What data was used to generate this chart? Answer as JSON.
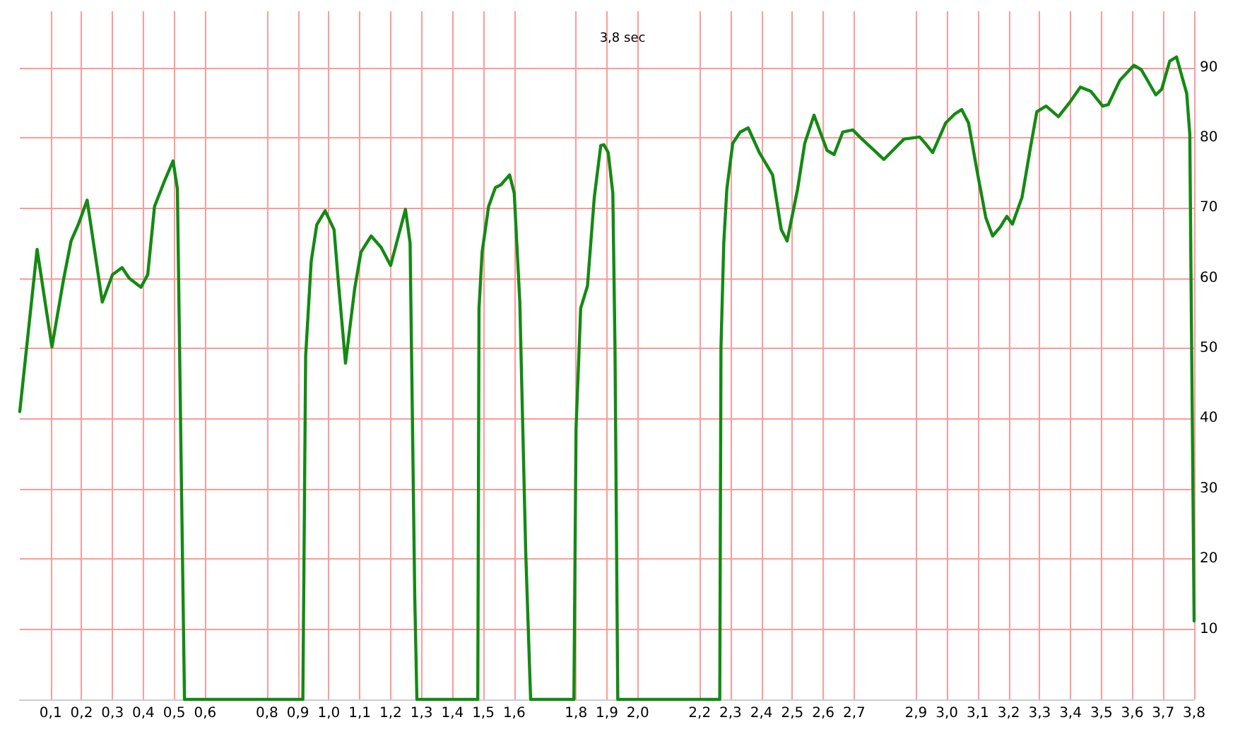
{
  "chart_data": {
    "type": "line",
    "title": "3,8 sec",
    "x": [
      0,
      0.056,
      0.104,
      0.142,
      0.166,
      0.189,
      0.218,
      0.267,
      0.3,
      0.331,
      0.354,
      0.392,
      0.414,
      0.436,
      0.467,
      0.496,
      0.51,
      0.522,
      0.533,
      0.916,
      0.925,
      0.943,
      0.961,
      0.988,
      1.017,
      1.03,
      1.054,
      1.084,
      1.104,
      1.137,
      1.169,
      1.2,
      1.248,
      1.263,
      1.278,
      1.285,
      1.482,
      1.486,
      1.496,
      1.517,
      1.539,
      1.557,
      1.585,
      1.6,
      1.618,
      1.637,
      1.653,
      1.793,
      1.8,
      1.815,
      1.837,
      1.859,
      1.88,
      1.89,
      1.904,
      1.919,
      1.926,
      1.935,
      2.265,
      2.269,
      2.278,
      2.288,
      2.307,
      2.331,
      2.357,
      2.393,
      2.436,
      2.464,
      2.483,
      2.517,
      2.54,
      2.57,
      2.612,
      2.635,
      2.663,
      2.696,
      2.718,
      2.796,
      2.861,
      2.912,
      2.93,
      2.954,
      2.996,
      3.026,
      3.048,
      3.07,
      3.1,
      3.126,
      3.148,
      3.173,
      3.194,
      3.212,
      3.243,
      3.27,
      3.291,
      3.321,
      3.361,
      3.397,
      3.432,
      3.466,
      3.504,
      3.522,
      3.56,
      3.605,
      3.629,
      3.676,
      3.695,
      3.721,
      3.743,
      3.776,
      3.786,
      3.79,
      3.8
    ],
    "series": [
      {
        "color": "#138a13",
        "values": [
          41,
          64.1,
          50.2,
          59.9,
          65.3,
          67.6,
          71.1,
          56.6,
          60.5,
          61.5,
          60,
          58.7,
          60.5,
          70.2,
          73.7,
          76.7,
          72.7,
          34.2,
          0,
          0,
          48.9,
          62.4,
          67.6,
          69.6,
          66.9,
          59.9,
          47.9,
          58.6,
          63.7,
          66,
          64.4,
          61.8,
          69.8,
          65,
          14.8,
          0,
          0,
          55.7,
          63.7,
          70.2,
          72.9,
          73.3,
          74.7,
          72.1,
          56.6,
          21.2,
          0,
          0,
          38.6,
          55.7,
          58.9,
          71.5,
          78.9,
          79,
          77.9,
          72.1,
          50.2,
          0,
          0,
          50.2,
          65,
          72.7,
          79.2,
          80.8,
          81.4,
          77.9,
          74.7,
          66.9,
          65.3,
          72.7,
          79.2,
          83.2,
          78.2,
          77.6,
          80.8,
          81.1,
          80.1,
          76.9,
          79.8,
          80.1,
          79.2,
          77.9,
          82.1,
          83.4,
          84,
          82.1,
          74.7,
          68.6,
          66,
          67.3,
          68.8,
          67.7,
          71.5,
          78.5,
          83.7,
          84.5,
          83,
          85,
          87.2,
          86.6,
          84.5,
          84.7,
          88.2,
          90.3,
          89.7,
          86.1,
          86.9,
          90.9,
          91.5,
          86.3,
          80.5,
          59.9,
          11.2
        ]
      }
    ],
    "xlim": [
      0,
      3.8
    ],
    "xticks": [
      {
        "value": 0.1,
        "label": "0,1"
      },
      {
        "value": 0.2,
        "label": "0,2"
      },
      {
        "value": 0.3,
        "label": "0,3"
      },
      {
        "value": 0.4,
        "label": "0,4"
      },
      {
        "value": 0.5,
        "label": "0,5"
      },
      {
        "value": 0.6,
        "label": "0,6"
      },
      {
        "value": 0.8,
        "label": "0,8"
      },
      {
        "value": 0.9,
        "label": "0,9"
      },
      {
        "value": 1.0,
        "label": "1,0"
      },
      {
        "value": 1.1,
        "label": "1,1"
      },
      {
        "value": 1.2,
        "label": "1,2"
      },
      {
        "value": 1.3,
        "label": "1,3"
      },
      {
        "value": 1.4,
        "label": "1,4"
      },
      {
        "value": 1.5,
        "label": "1,5"
      },
      {
        "value": 1.6,
        "label": "1,6"
      },
      {
        "value": 1.8,
        "label": "1,8"
      },
      {
        "value": 1.9,
        "label": "1,9"
      },
      {
        "value": 2.0,
        "label": "2,0"
      },
      {
        "value": 2.2,
        "label": "2,2"
      },
      {
        "value": 2.3,
        "label": "2,3"
      },
      {
        "value": 2.4,
        "label": "2,4"
      },
      {
        "value": 2.5,
        "label": "2,5"
      },
      {
        "value": 2.6,
        "label": "2,6"
      },
      {
        "value": 2.7,
        "label": "2,7"
      },
      {
        "value": 2.9,
        "label": "2,9"
      },
      {
        "value": 3.0,
        "label": "3,0"
      },
      {
        "value": 3.1,
        "label": "3,1"
      },
      {
        "value": 3.2,
        "label": "3,2"
      },
      {
        "value": 3.3,
        "label": "3,3"
      },
      {
        "value": 3.4,
        "label": "3,4"
      },
      {
        "value": 3.5,
        "label": "3,5"
      },
      {
        "value": 3.6,
        "label": "3,6"
      },
      {
        "value": 3.7,
        "label": "3,7"
      },
      {
        "value": 3.8,
        "label": "3,8"
      }
    ],
    "ylim": [
      0,
      98
    ],
    "yticks": [
      10,
      20,
      30,
      40,
      50,
      60,
      70,
      80,
      90
    ],
    "grid": true,
    "marker": "none",
    "line_style": "solid"
  }
}
